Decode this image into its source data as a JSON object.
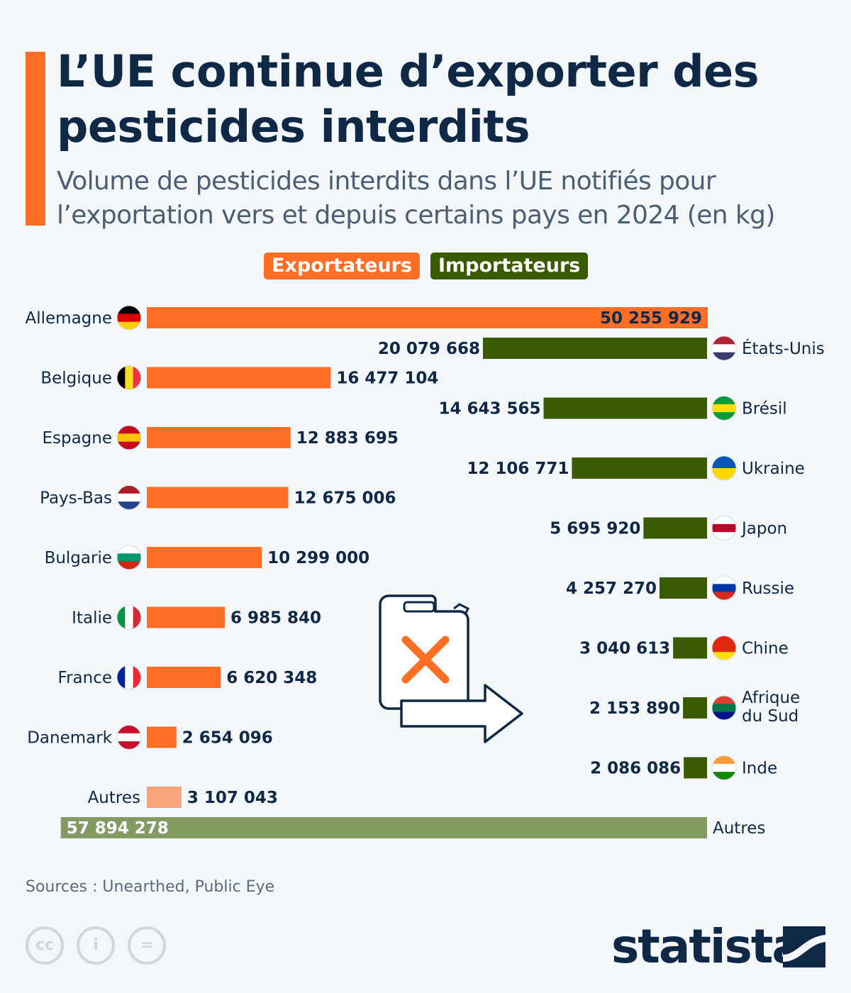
{
  "header": {
    "title": "L’UE continue d’exporter des pesticides interdits",
    "subtitle": "Volume de pesticides interdits dans l’UE notifiés pour l’exportation vers et depuis certains pays en 2024 (en kg)"
  },
  "legend": {
    "exporters": "Exportateurs",
    "importers": "Importateurs"
  },
  "colors": {
    "exporters": "#ff6e24",
    "exporters_other": "#f9a47a",
    "importers": "#3a5a00",
    "importers_other": "#849a63",
    "accent": "#ff6e24",
    "text": "#0f2846"
  },
  "chart_data": {
    "type": "bar",
    "orientation": "horizontal",
    "unit": "kg",
    "series": [
      {
        "name": "Exportateurs",
        "categories": [
          "Allemagne",
          "Belgique",
          "Espagne",
          "Pays-Bas",
          "Bulgarie",
          "Italie",
          "France",
          "Danemark",
          "Autres"
        ],
        "labels": [
          "50 255 929",
          "16 477 104",
          "12 883 695",
          "12 675 006",
          "10 299 000",
          "6 985 840",
          "6 620 348",
          "2 654 096",
          "3 107 043"
        ],
        "values": [
          50255929,
          16477104,
          12883695,
          12675006,
          10299000,
          6985840,
          6620348,
          2654096,
          3107043
        ]
      },
      {
        "name": "Importateurs",
        "categories": [
          "États-Unis",
          "Brésil",
          "Ukraine",
          "Japon",
          "Russie",
          "Chine",
          "Afrique du Sud",
          "Inde",
          "Autres"
        ],
        "labels": [
          "20 079 668",
          "14 643 565",
          "12 106 771",
          "5 695 920",
          "4 257 270",
          "3 040 613",
          "2 153 890",
          "2 086 086",
          "57 894 278"
        ],
        "values": [
          20079668,
          14643565,
          12106771,
          5695920,
          4257270,
          3040613,
          2153890,
          2086086,
          57894278
        ]
      }
    ],
    "flags": {
      "exporters": [
        [
          "h",
          "#000000",
          "#dd0000",
          "#ffce00"
        ],
        [
          "v",
          "#000000",
          "#fdda24",
          "#ef3340"
        ],
        [
          "h",
          "#c60b1e",
          "#ffc400",
          "#c60b1e"
        ],
        [
          "h",
          "#ae1c28",
          "#ffffff",
          "#21468b"
        ],
        [
          "h",
          "#ffffff",
          "#00966e",
          "#d62612"
        ],
        [
          "v",
          "#009246",
          "#ffffff",
          "#ce2b37"
        ],
        [
          "v",
          "#002395",
          "#ffffff",
          "#ed2939"
        ],
        [
          "h",
          "#c8102e",
          "#ffffff",
          "#c8102e"
        ],
        null
      ],
      "importers": [
        [
          "h",
          "#b22234",
          "#ffffff",
          "#3c3b6e"
        ],
        [
          "h",
          "#009c3b",
          "#ffdf00",
          "#009c3b"
        ],
        [
          "h",
          "#0057b7",
          "#ffd700"
        ],
        [
          "h",
          "#ffffff",
          "#bc002d",
          "#ffffff"
        ],
        [
          "h",
          "#ffffff",
          "#0039a6",
          "#d52b1e"
        ],
        [
          "h",
          "#de2910",
          "#de2910",
          "#ffde00"
        ],
        [
          "h",
          "#e03c31",
          "#007749",
          "#001489"
        ],
        [
          "h",
          "#ff9933",
          "#ffffff",
          "#138808"
        ],
        null
      ]
    }
  },
  "footer": {
    "source": "Sources : Unearthed, Public Eye",
    "license_icons": [
      "cc-icon",
      "attribution-icon",
      "no-derivatives-icon"
    ],
    "license_glyphs": [
      "cc",
      "i",
      "="
    ],
    "brand": "statista"
  }
}
